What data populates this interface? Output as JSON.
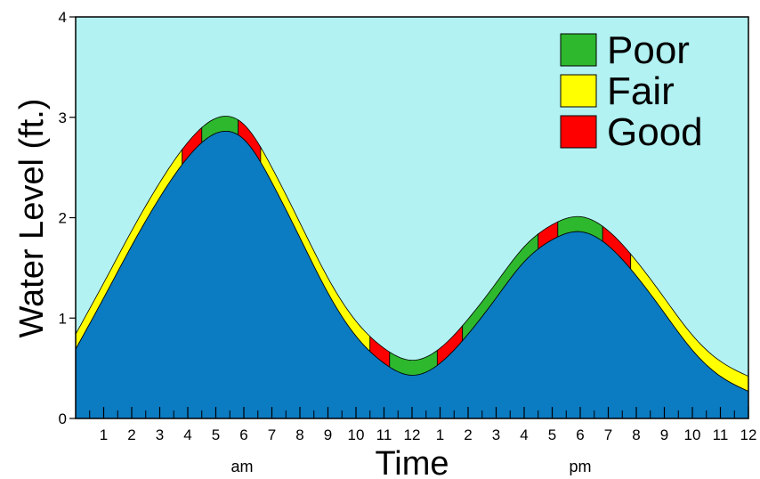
{
  "chart_data": {
    "type": "area",
    "xlabel": "Time",
    "ylabel": "Water Level (ft.)",
    "ylim": [
      0,
      4
    ],
    "yticks": [
      "0",
      "1",
      "2",
      "3",
      "4"
    ],
    "xtick_labels": [
      "1",
      "2",
      "3",
      "4",
      "5",
      "6",
      "7",
      "8",
      "9",
      "10",
      "11",
      "12",
      "1",
      "2",
      "3",
      "4",
      "5",
      "6",
      "7",
      "8",
      "9",
      "10",
      "11",
      "12"
    ],
    "period_labels": [
      "am",
      "pm"
    ],
    "series": [
      {
        "name": "water level",
        "points": [
          [
            0,
            0.69
          ],
          [
            1,
            1.2
          ],
          [
            2,
            1.72
          ],
          [
            3,
            2.2
          ],
          [
            4,
            2.6
          ],
          [
            5,
            2.84
          ],
          [
            6,
            2.78
          ],
          [
            7,
            2.35
          ],
          [
            8,
            1.8
          ],
          [
            9,
            1.25
          ],
          [
            10,
            0.82
          ],
          [
            11,
            0.55
          ],
          [
            12,
            0.43
          ],
          [
            13,
            0.55
          ],
          [
            14,
            0.84
          ],
          [
            15,
            1.2
          ],
          [
            16,
            1.56
          ],
          [
            17,
            1.78
          ],
          [
            18,
            1.86
          ],
          [
            19,
            1.72
          ],
          [
            20,
            1.42
          ],
          [
            21,
            1.05
          ],
          [
            22,
            0.68
          ],
          [
            23,
            0.42
          ],
          [
            24,
            0.27
          ]
        ]
      }
    ],
    "quality_band": {
      "thickness": 0.15,
      "segments": [
        {
          "from": 0,
          "to": 3.8,
          "rating": "Fair"
        },
        {
          "from": 3.8,
          "to": 4.5,
          "rating": "Good"
        },
        {
          "from": 4.5,
          "to": 5.8,
          "rating": "Poor"
        },
        {
          "from": 5.8,
          "to": 6.6,
          "rating": "Good"
        },
        {
          "from": 6.6,
          "to": 10.5,
          "rating": "Fair"
        },
        {
          "from": 10.5,
          "to": 11.2,
          "rating": "Good"
        },
        {
          "from": 11.2,
          "to": 12.9,
          "rating": "Poor"
        },
        {
          "from": 12.9,
          "to": 13.8,
          "rating": "Good"
        },
        {
          "from": 13.8,
          "to": 16.5,
          "rating": "Poor"
        },
        {
          "from": 16.5,
          "to": 17.2,
          "rating": "Good"
        },
        {
          "from": 17.2,
          "to": 18.8,
          "rating": "Poor"
        },
        {
          "from": 18.8,
          "to": 19.8,
          "rating": "Good"
        },
        {
          "from": 19.8,
          "to": 24,
          "rating": "Fair"
        }
      ]
    },
    "legend": {
      "position": "top-right",
      "entries": [
        {
          "label": "Poor",
          "color": "#2eb82e"
        },
        {
          "label": "Fair",
          "color": "#ffff00"
        },
        {
          "label": "Good",
          "color": "#ff0000"
        }
      ]
    },
    "colors": {
      "sky": "#b2f2f2",
      "water": "#0b7bc2",
      "Poor": "#2eb82e",
      "Fair": "#ffff00",
      "Good": "#ff0000"
    }
  }
}
